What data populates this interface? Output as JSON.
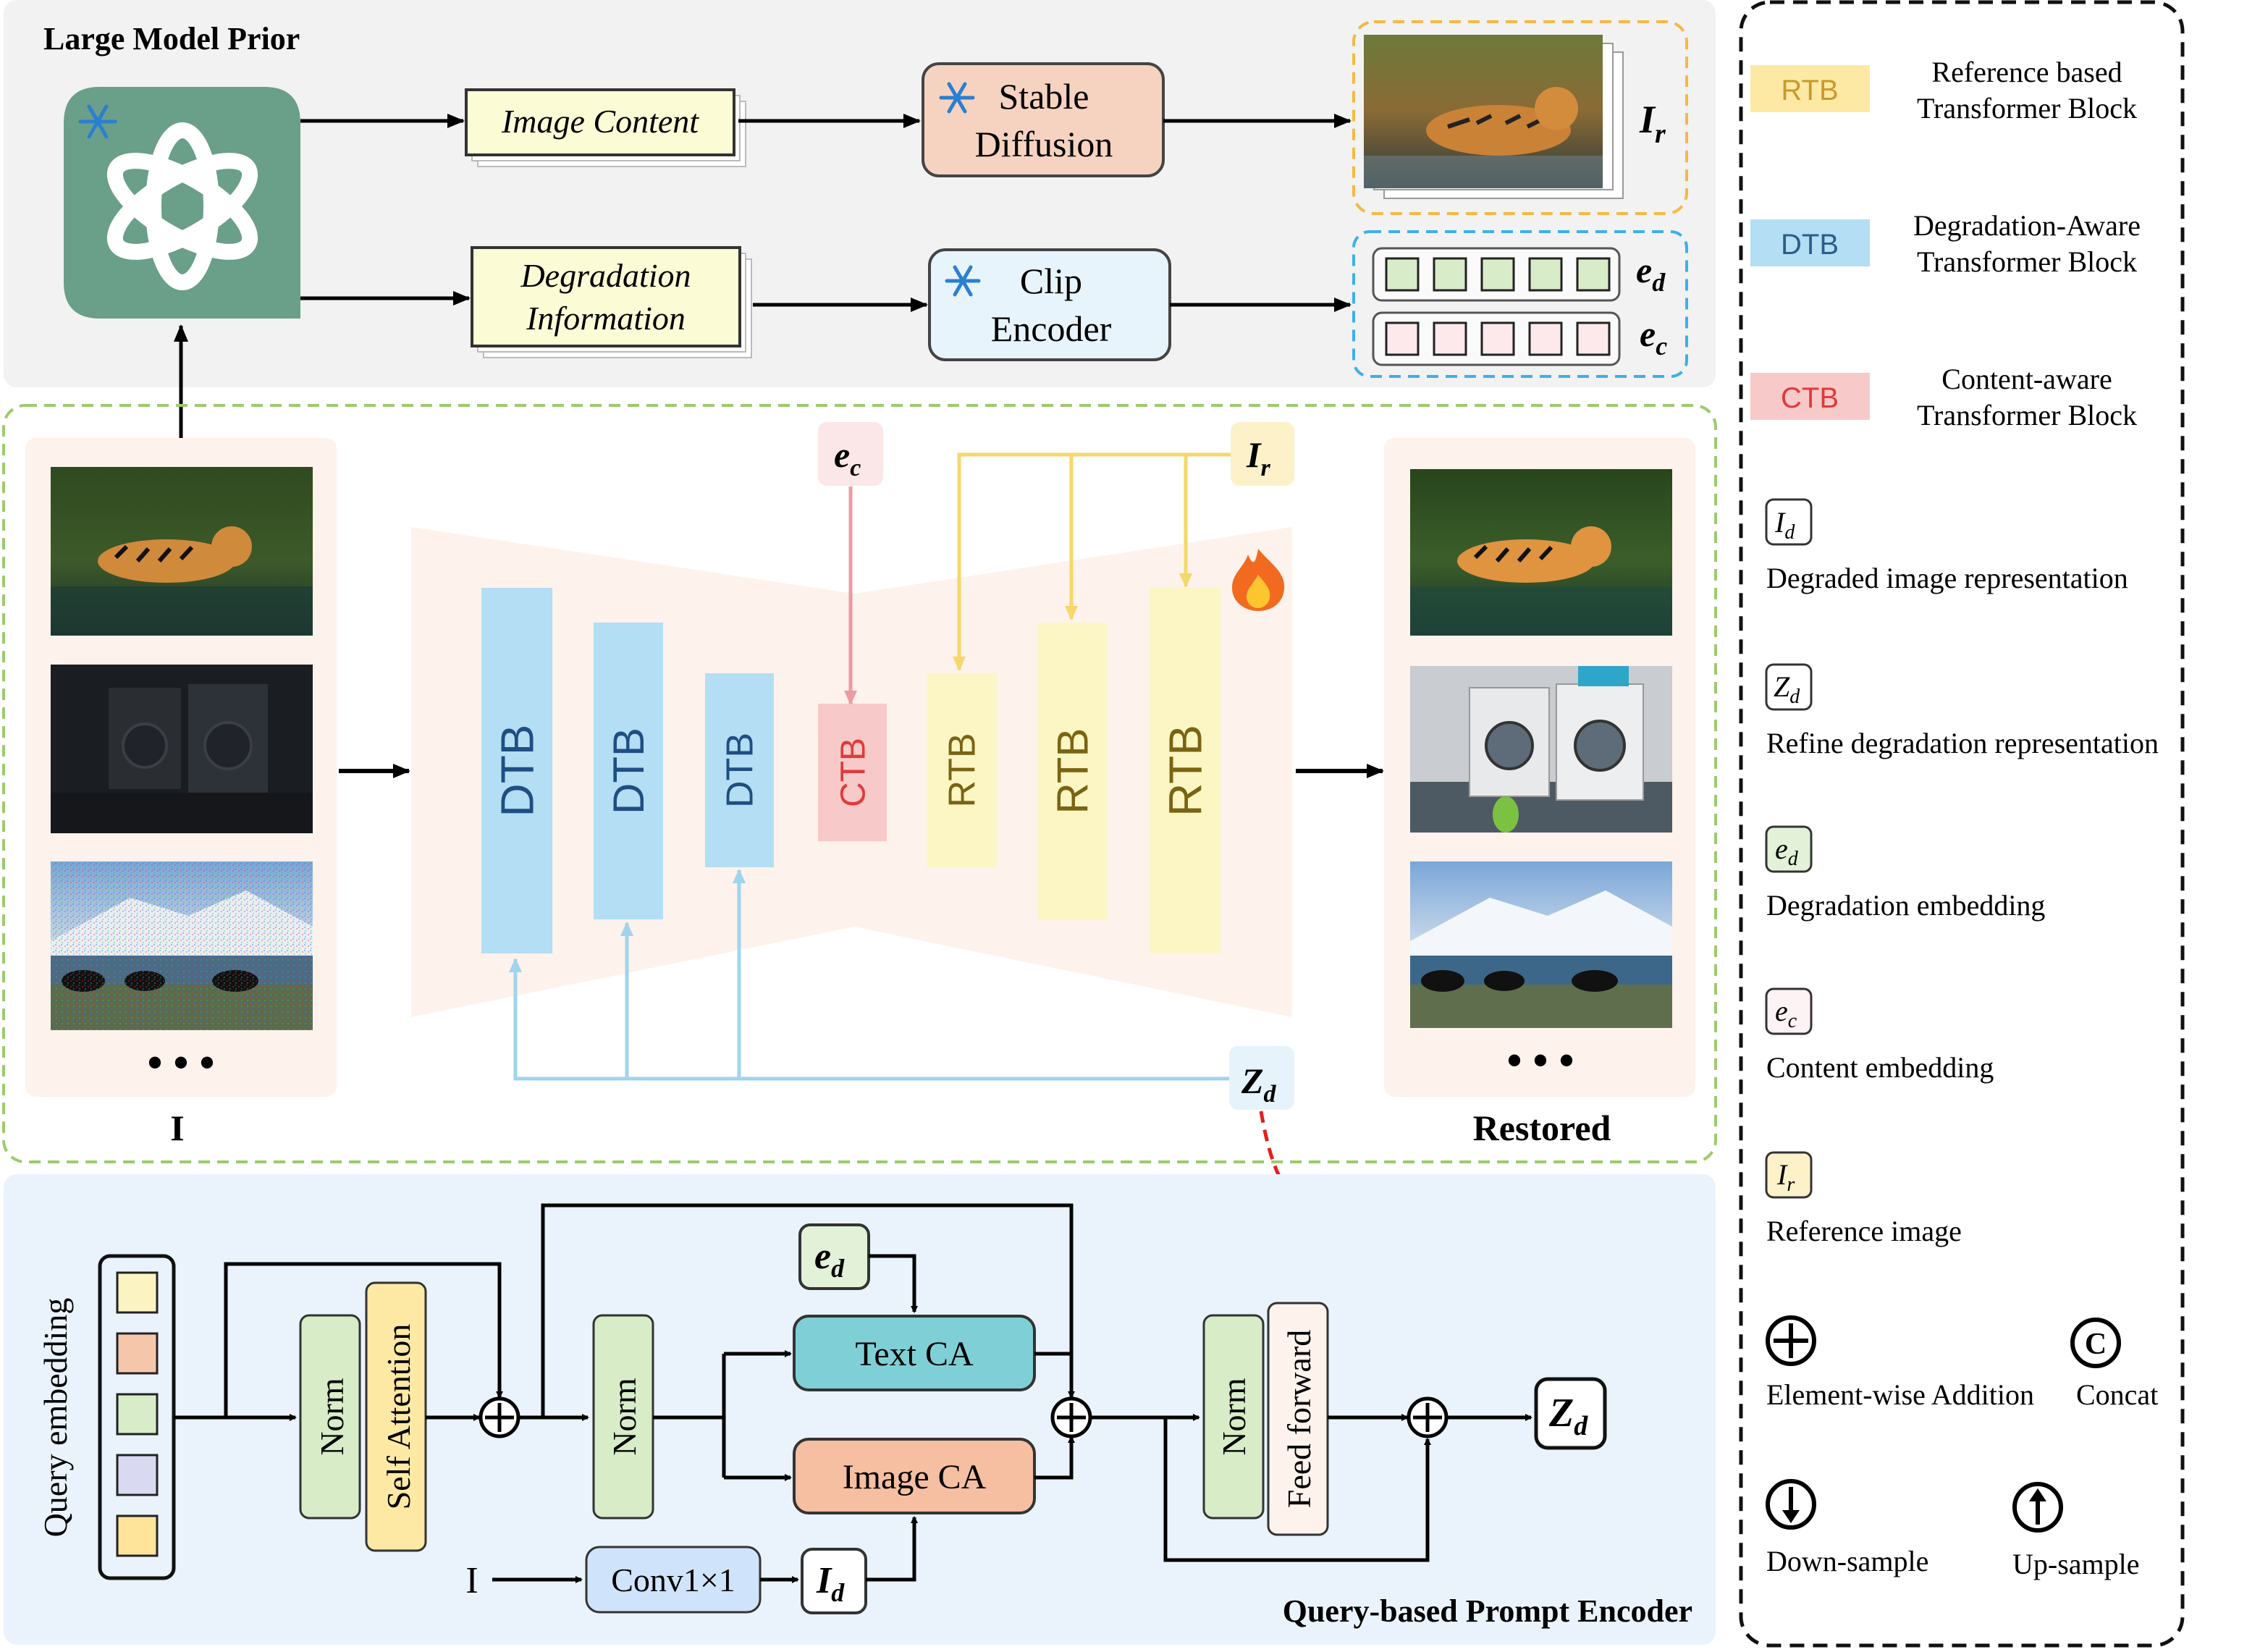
{
  "top_panel": {
    "title": "Large Model Prior",
    "image_content": "Image Content",
    "degradation_line1": "Degradation",
    "degradation_line2": "Information",
    "stable_line1": "Stable",
    "stable_line2": "Diffusion",
    "clip_line1": "Clip",
    "clip_line2": "Encoder",
    "out_ir": "I",
    "out_ir_sub": "r",
    "out_ed": "e",
    "out_ed_sub": "d",
    "out_ec": "e",
    "out_ec_sub": "c"
  },
  "middle_panel": {
    "input_label": "I",
    "output_label": "Restored",
    "ec_tag": "e",
    "ec_sub": "c",
    "ir_tag": "I",
    "ir_sub": "r",
    "zd_tag": "Z",
    "zd_sub": "d",
    "blocks": [
      "DTB",
      "DTB",
      "DTB",
      "CTB",
      "RTB",
      "RTB",
      "RTB"
    ],
    "ellipsis": "• • •"
  },
  "bottom_panel": {
    "title": "Query-based Prompt Encoder",
    "query_embedding": "Query embedding",
    "norm": "Norm",
    "self_attention": "Self Attention",
    "text_ca": "Text CA",
    "image_ca": "Image CA",
    "feed_forward": "Feed forward",
    "conv": "Conv1×1",
    "input_i": "I",
    "ed": "e",
    "ed_sub": "d",
    "id": "I",
    "id_sub": "d",
    "zd": "Z",
    "zd_sub": "d"
  },
  "legend": {
    "rtb_tag": "RTB",
    "rtb_line1": "Reference based",
    "rtb_line2": "Transformer Block",
    "dtb_tag": "DTB",
    "dtb_line1": "Degradation-Aware",
    "dtb_line2": "Transformer Block",
    "ctb_tag": "CTB",
    "ctb_line1": "Content-aware",
    "ctb_line2": "Transformer Block",
    "id_sym": "I",
    "id_sub": "d",
    "id_text": "Degraded image representation",
    "zd_sym": "Z",
    "zd_sub": "d",
    "zd_text": "Refine degradation representation",
    "ed_sym": "e",
    "ed_sub": "d",
    "ed_text": "Degradation embedding",
    "ec_sym": "e",
    "ec_sub": "c",
    "ec_text": "Content embedding",
    "ir_sym": "I",
    "ir_sub": "r",
    "ir_text": "Reference image",
    "add_text": "Element-wise Addition",
    "concat_symbol": "C",
    "concat_text": "Concat",
    "down_text": "Down-sample",
    "up_text": "Up-sample"
  },
  "colors": {
    "dtb": "#b3def3",
    "ctb": "#f8c9c9",
    "rtb": "#fbf6c4",
    "rtb_legend": "#fde9a4",
    "pink_bg": "#fdf2ec",
    "bottom_bg": "#eaf3fb",
    "top_bg": "#f2f2f2",
    "red_dash": "#e02020",
    "orange_dash": "#f5b942",
    "blue_dash": "#3db0ea",
    "green_dash": "#9ec96e"
  }
}
